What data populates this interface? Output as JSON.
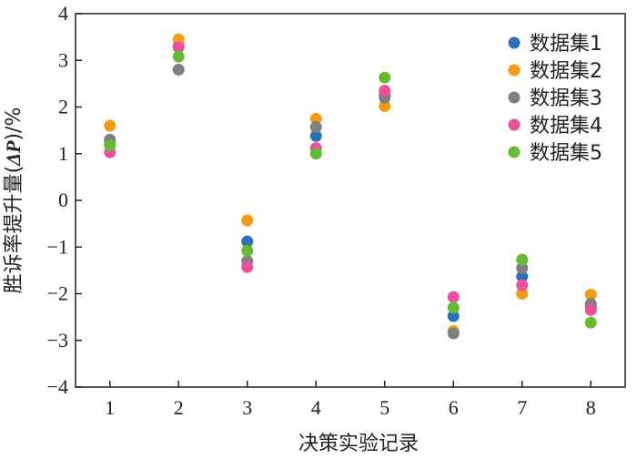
{
  "chart_data": {
    "type": "scatter",
    "xlabel": "决策实验记录",
    "ylabel_main": "胜诉率提升量(",
    "ylabel_symbol": "ΔP",
    "ylabel_tail": ")/%",
    "x_ticks": [
      "1",
      "2",
      "3",
      "4",
      "5",
      "6",
      "7",
      "8"
    ],
    "y_ticks": [
      "4",
      "3",
      "2",
      "1",
      "0",
      "−1",
      "−2",
      "−3",
      "−4"
    ],
    "xlim": [
      0.5,
      8.5
    ],
    "ylim": [
      -4,
      4
    ],
    "grid": false,
    "legend_position": "top-right",
    "x": [
      1,
      2,
      3,
      4,
      5,
      6,
      7,
      8
    ],
    "series": [
      {
        "name": "数据集1",
        "color": "#2e6fba",
        "values": [
          1.2,
          3.3,
          -0.88,
          1.38,
          2.25,
          -2.48,
          -1.63,
          -2.28
        ]
      },
      {
        "name": "数据集2",
        "color": "#f39c12",
        "values": [
          1.6,
          3.45,
          -0.43,
          1.75,
          2.02,
          -2.8,
          -2.0,
          -2.02
        ]
      },
      {
        "name": "数据集3",
        "color": "#7f7f7f",
        "values": [
          1.3,
          2.8,
          -1.3,
          1.57,
          2.2,
          -2.85,
          -1.45,
          -2.22
        ]
      },
      {
        "name": "数据集4",
        "color": "#ec4f9c",
        "values": [
          1.03,
          3.28,
          -1.43,
          1.12,
          2.35,
          -2.07,
          -1.82,
          -2.35
        ]
      },
      {
        "name": "数据集5",
        "color": "#66bb33",
        "values": [
          1.18,
          3.08,
          -1.08,
          1.0,
          2.63,
          -2.3,
          -1.27,
          -2.62
        ]
      }
    ]
  }
}
